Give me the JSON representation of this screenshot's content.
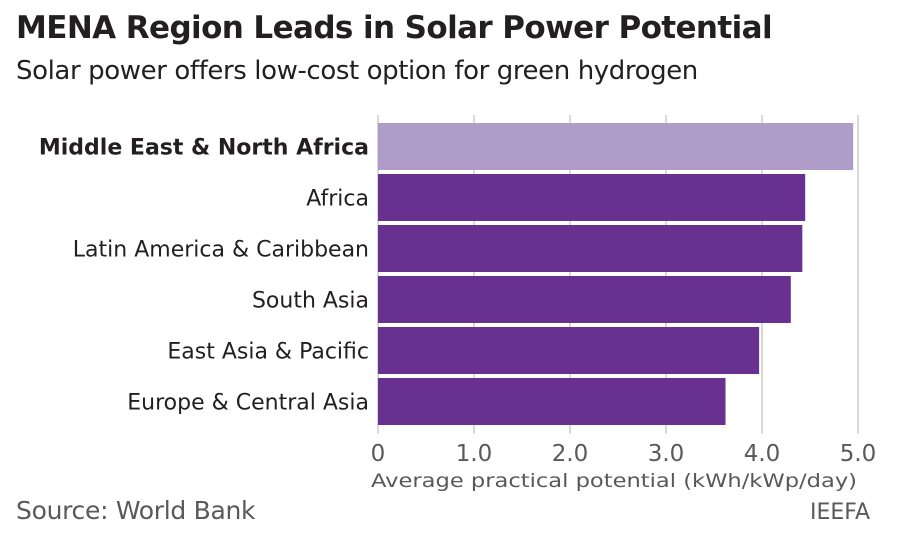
{
  "title": "MENA Region Leads in Solar Power Potential",
  "subtitle": "Solar power offers low-cost option for green hydrogen",
  "source": "Source: World Bank",
  "brand": "IEEFA",
  "colors": {
    "highlight": "#B09CC9",
    "bar": "#68308F",
    "grid": "#d9d9d9",
    "text": "#231f20"
  },
  "chart_data": {
    "type": "bar",
    "orientation": "horizontal",
    "title": "MENA Region Leads in Solar Power Potential",
    "subtitle": "Solar power offers low-cost option for green hydrogen",
    "xlabel": "Average practical potential (kWh/kWp/day)",
    "ylabel": "",
    "xlim": [
      0,
      5.0
    ],
    "xticks": [
      "0",
      "1.0",
      "2.0",
      "3.0",
      "4.0",
      "5.0"
    ],
    "grid": "vertical",
    "categories": [
      "Middle East & North Africa",
      "Africa",
      "Latin America & Caribbean",
      "South Asia",
      "East Asia & Pacific",
      "Europe & Central Asia"
    ],
    "values": [
      4.95,
      4.45,
      4.42,
      4.3,
      3.97,
      3.62
    ],
    "highlighted": "Middle East & North Africa"
  }
}
